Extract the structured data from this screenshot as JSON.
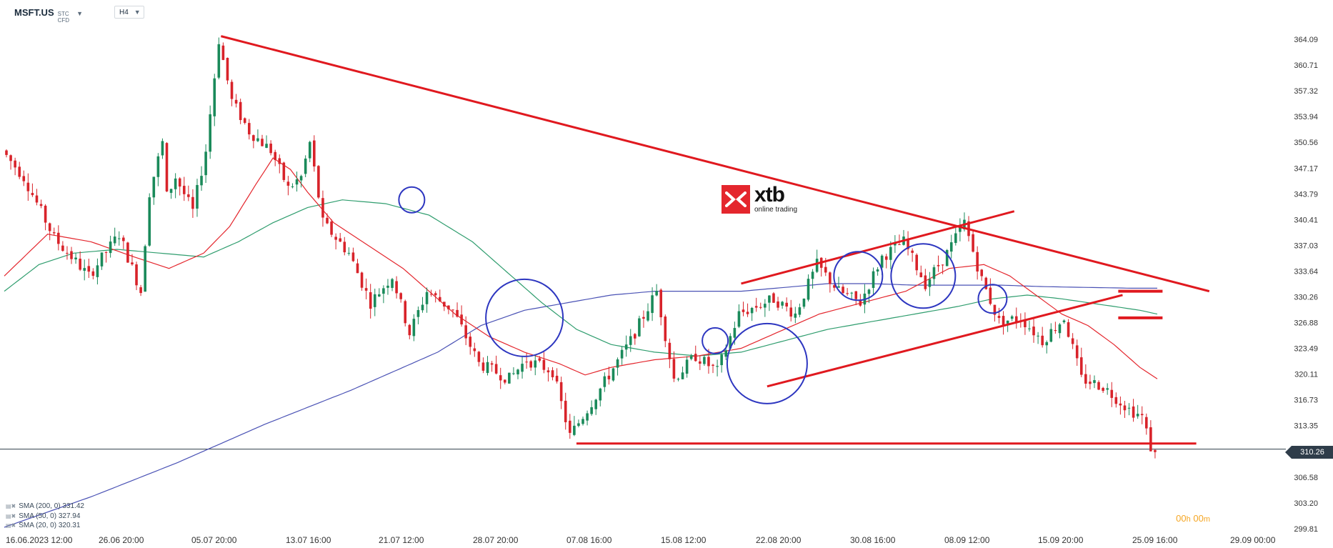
{
  "header": {
    "symbol": "MSFT.US",
    "symbol_type": "STC CFD",
    "timeframe": "H4"
  },
  "logo": {
    "name": "xtb",
    "sub": "online trading"
  },
  "timer": {
    "h": "00",
    "h_unit": "h",
    "m": "00",
    "m_unit": "m"
  },
  "legend": [
    {
      "label": "SMA (200, 0) 331.42"
    },
    {
      "label": "SMA (50, 0) 327.94"
    },
    {
      "label": "SMA (20, 0) 320.31"
    }
  ],
  "colors": {
    "up": "#1a8a5a",
    "down": "#d8232a",
    "sma200": "#4a52b5",
    "sma50": "#2f9d6e",
    "sma20": "#e4262d",
    "annot": "#e0191f",
    "circle": "#2d36c0",
    "price_line": "#2f3d4a"
  },
  "chart_data": {
    "type": "candlestick",
    "symbol": "MSFT.US",
    "timeframe": "H4",
    "ylim": [
      299.81,
      364.09
    ],
    "yticks": [
      364.09,
      360.71,
      357.32,
      353.94,
      350.56,
      347.17,
      343.79,
      340.41,
      337.03,
      333.64,
      330.26,
      326.88,
      323.49,
      320.11,
      316.73,
      313.35,
      306.58,
      303.2,
      299.81
    ],
    "xlabels": [
      "16.06.2023 12:00",
      "26.06 20:00",
      "05.07 20:00",
      "13.07 16:00",
      "21.07 12:00",
      "28.07 20:00",
      "07.08 16:00",
      "15.08 12:00",
      "22.08 20:00",
      "30.08 16:00",
      "08.09 12:00",
      "15.09 20:00",
      "25.09 16:00",
      "29.09 00:00"
    ],
    "last_price": "310.26",
    "series": [
      {
        "name": "SMA (200, 0)",
        "value": 331.42
      },
      {
        "name": "SMA (50, 0)",
        "value": 327.94
      },
      {
        "name": "SMA (20, 0)",
        "value": 320.31
      }
    ],
    "price_path": [
      [
        0,
        349.5
      ],
      [
        5,
        346.0
      ],
      [
        12,
        338.0
      ],
      [
        20,
        333.0
      ],
      [
        27,
        338.5
      ],
      [
        32,
        331.0
      ],
      [
        34,
        344.0
      ],
      [
        37,
        350.5
      ],
      [
        38,
        343.5
      ],
      [
        40,
        346.0
      ],
      [
        44,
        341.5
      ],
      [
        47,
        349.5
      ],
      [
        50,
        364.0
      ],
      [
        53,
        356.0
      ],
      [
        57,
        352.0
      ],
      [
        62,
        349.5
      ],
      [
        66,
        344.5
      ],
      [
        69,
        346.0
      ],
      [
        71,
        350.5
      ],
      [
        74,
        340.0
      ],
      [
        80,
        336.0
      ],
      [
        85,
        329.5
      ],
      [
        90,
        333.0
      ],
      [
        94,
        325.5
      ],
      [
        98,
        331.0
      ],
      [
        104,
        328.5
      ],
      [
        110,
        321.5
      ],
      [
        117,
        319.5
      ],
      [
        121,
        322.0
      ],
      [
        127,
        320.5
      ],
      [
        131,
        312.0
      ],
      [
        135,
        315.5
      ],
      [
        140,
        320.0
      ],
      [
        145,
        324.5
      ],
      [
        151,
        331.0
      ],
      [
        155,
        319.5
      ],
      [
        160,
        322.5
      ],
      [
        165,
        320.5
      ],
      [
        170,
        328.0
      ],
      [
        178,
        330.0
      ],
      [
        183,
        328.0
      ],
      [
        188,
        334.5
      ],
      [
        193,
        331.0
      ],
      [
        198,
        329.5
      ],
      [
        203,
        335.5
      ],
      [
        208,
        337.5
      ],
      [
        213,
        332.0
      ],
      [
        218,
        336.0
      ],
      [
        222,
        340.0
      ],
      [
        226,
        332.5
      ],
      [
        230,
        327.0
      ],
      [
        235,
        327.5
      ],
      [
        240,
        324.5
      ],
      [
        245,
        327.5
      ],
      [
        249,
        319.5
      ],
      [
        254,
        318.5
      ],
      [
        260,
        315.5
      ],
      [
        263,
        314.5
      ],
      [
        265,
        310.5
      ],
      [
        266,
        309.5
      ]
    ],
    "sma20_path": [
      [
        0,
        333.0
      ],
      [
        10,
        338.5
      ],
      [
        20,
        337.5
      ],
      [
        30,
        335.5
      ],
      [
        38,
        334.0
      ],
      [
        46,
        336.0
      ],
      [
        52,
        339.5
      ],
      [
        58,
        345.0
      ],
      [
        62,
        348.5
      ],
      [
        66,
        347.0
      ],
      [
        70,
        344.0
      ],
      [
        76,
        340.0
      ],
      [
        84,
        337.0
      ],
      [
        92,
        334.0
      ],
      [
        98,
        331.0
      ],
      [
        104,
        328.0
      ],
      [
        112,
        325.0
      ],
      [
        120,
        323.0
      ],
      [
        128,
        321.5
      ],
      [
        134,
        320.0
      ],
      [
        140,
        321.0
      ],
      [
        150,
        322.0
      ],
      [
        160,
        322.5
      ],
      [
        170,
        323.5
      ],
      [
        178,
        325.5
      ],
      [
        188,
        328.0
      ],
      [
        198,
        329.5
      ],
      [
        208,
        331.0
      ],
      [
        218,
        334.0
      ],
      [
        226,
        334.5
      ],
      [
        232,
        333.0
      ],
      [
        238,
        330.5
      ],
      [
        244,
        328.0
      ],
      [
        250,
        326.5
      ],
      [
        256,
        324.0
      ],
      [
        262,
        321.0
      ],
      [
        266,
        319.5
      ]
    ],
    "sma50_path": [
      [
        0,
        331.0
      ],
      [
        8,
        334.5
      ],
      [
        16,
        336.0
      ],
      [
        26,
        336.5
      ],
      [
        36,
        336.0
      ],
      [
        46,
        335.5
      ],
      [
        54,
        337.5
      ],
      [
        62,
        340.0
      ],
      [
        70,
        342.0
      ],
      [
        78,
        343.0
      ],
      [
        88,
        342.5
      ],
      [
        98,
        341.0
      ],
      [
        108,
        337.5
      ],
      [
        116,
        333.5
      ],
      [
        124,
        329.5
      ],
      [
        132,
        326.0
      ],
      [
        140,
        324.0
      ],
      [
        150,
        323.0
      ],
      [
        160,
        322.5
      ],
      [
        170,
        323.0
      ],
      [
        180,
        324.5
      ],
      [
        190,
        326.0
      ],
      [
        200,
        327.0
      ],
      [
        210,
        328.0
      ],
      [
        220,
        329.0
      ],
      [
        228,
        330.0
      ],
      [
        236,
        330.5
      ],
      [
        244,
        330.0
      ],
      [
        250,
        329.5
      ],
      [
        256,
        329.0
      ],
      [
        262,
        328.5
      ],
      [
        266,
        328.0
      ]
    ],
    "sma200_path": [
      [
        0,
        300.0
      ],
      [
        20,
        304.0
      ],
      [
        40,
        308.5
      ],
      [
        60,
        313.5
      ],
      [
        80,
        318.0
      ],
      [
        100,
        323.0
      ],
      [
        110,
        326.5
      ],
      [
        120,
        328.5
      ],
      [
        130,
        329.5
      ],
      [
        140,
        330.5
      ],
      [
        150,
        331.0
      ],
      [
        160,
        331.0
      ],
      [
        170,
        331.0
      ],
      [
        180,
        331.5
      ],
      [
        190,
        332.0
      ],
      [
        200,
        332.0
      ],
      [
        210,
        331.8
      ],
      [
        220,
        331.8
      ],
      [
        230,
        331.8
      ],
      [
        240,
        331.6
      ],
      [
        250,
        331.5
      ],
      [
        260,
        331.4
      ],
      [
        266,
        331.4
      ]
    ],
    "annotations": {
      "resistance_line": [
        [
          50,
          364.5
        ],
        [
          278,
          331.0
        ]
      ],
      "support_line": [
        [
          132,
          311.0
        ],
        [
          275,
          311.0
        ]
      ],
      "channel_upper": [
        [
          170,
          332.0
        ],
        [
          233,
          341.5
        ]
      ],
      "channel_lower": [
        [
          176,
          318.5
        ],
        [
          258,
          330.5
        ]
      ],
      "levels": [
        [
          257,
          331.0
        ],
        [
          257,
          327.5
        ]
      ],
      "circles": [
        [
          94,
          343.0
        ],
        [
          120,
          327.5
        ],
        [
          164,
          324.5
        ],
        [
          176,
          321.5
        ],
        [
          197,
          333.0
        ],
        [
          212,
          333.0
        ],
        [
          228,
          330.0
        ]
      ]
    }
  }
}
